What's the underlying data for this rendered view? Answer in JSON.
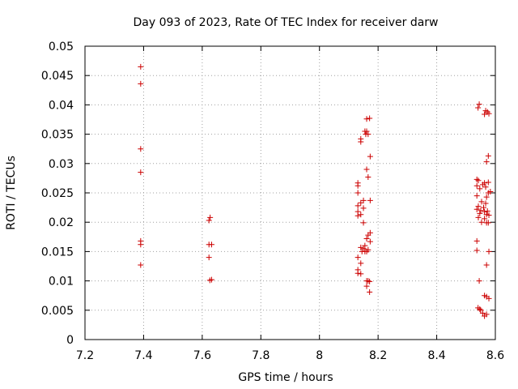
{
  "chart_data": {
    "type": "scatter",
    "title": "Day 093 of 2023, Rate Of TEC Index for receiver darw",
    "xlabel": "GPS time / hours",
    "ylabel": "ROTI / TECUs",
    "xlim": [
      7.2,
      8.6
    ],
    "ylim": [
      0,
      0.05
    ],
    "grid": true,
    "marker": "plus",
    "color": "#cc0000",
    "xticks": [
      7.2,
      7.4,
      7.6,
      7.8,
      8.0,
      8.2,
      8.4,
      8.6
    ],
    "xtick_labels": [
      "7.2",
      "7.4",
      "7.6",
      "7.8",
      "8",
      "8.2",
      "8.4",
      "8.6"
    ],
    "yticks": [
      0,
      0.005,
      0.01,
      0.015,
      0.02,
      0.025,
      0.03,
      0.035,
      0.04,
      0.045,
      0.05
    ],
    "ytick_labels": [
      "0",
      "0.005",
      "0.01",
      "0.015",
      "0.02",
      "0.025",
      "0.03",
      "0.035",
      "0.04",
      "0.045",
      "0.05"
    ],
    "points": [
      {
        "x": 7.39,
        "y": 0.0465
      },
      {
        "x": 7.39,
        "y": 0.0436
      },
      {
        "x": 7.39,
        "y": 0.0325
      },
      {
        "x": 7.39,
        "y": 0.0285
      },
      {
        "x": 7.39,
        "y": 0.0168
      },
      {
        "x": 7.39,
        "y": 0.0162
      },
      {
        "x": 7.39,
        "y": 0.0127
      },
      {
        "x": 7.627,
        "y": 0.0208
      },
      {
        "x": 7.623,
        "y": 0.0203
      },
      {
        "x": 7.623,
        "y": 0.0162
      },
      {
        "x": 7.632,
        "y": 0.0162
      },
      {
        "x": 7.623,
        "y": 0.014
      },
      {
        "x": 7.626,
        "y": 0.0101
      },
      {
        "x": 7.632,
        "y": 0.0102
      },
      {
        "x": 8.161,
        "y": 0.0376
      },
      {
        "x": 8.171,
        "y": 0.0377
      },
      {
        "x": 8.155,
        "y": 0.0355
      },
      {
        "x": 8.161,
        "y": 0.0355
      },
      {
        "x": 8.158,
        "y": 0.035
      },
      {
        "x": 8.166,
        "y": 0.035
      },
      {
        "x": 8.141,
        "y": 0.0342
      },
      {
        "x": 8.141,
        "y": 0.0337
      },
      {
        "x": 8.173,
        "y": 0.0312
      },
      {
        "x": 8.161,
        "y": 0.029
      },
      {
        "x": 8.166,
        "y": 0.0277
      },
      {
        "x": 8.131,
        "y": 0.0267
      },
      {
        "x": 8.131,
        "y": 0.0262
      },
      {
        "x": 8.131,
        "y": 0.025
      },
      {
        "x": 8.15,
        "y": 0.0237
      },
      {
        "x": 8.173,
        "y": 0.0237
      },
      {
        "x": 8.141,
        "y": 0.0233
      },
      {
        "x": 8.131,
        "y": 0.0228
      },
      {
        "x": 8.15,
        "y": 0.0224
      },
      {
        "x": 8.131,
        "y": 0.0218
      },
      {
        "x": 8.141,
        "y": 0.0213
      },
      {
        "x": 8.131,
        "y": 0.0211
      },
      {
        "x": 8.15,
        "y": 0.0199
      },
      {
        "x": 8.173,
        "y": 0.0182
      },
      {
        "x": 8.166,
        "y": 0.0178
      },
      {
        "x": 8.161,
        "y": 0.0172
      },
      {
        "x": 8.173,
        "y": 0.0167
      },
      {
        "x": 8.155,
        "y": 0.016
      },
      {
        "x": 8.141,
        "y": 0.0157
      },
      {
        "x": 8.15,
        "y": 0.0155
      },
      {
        "x": 8.166,
        "y": 0.0153
      },
      {
        "x": 8.145,
        "y": 0.015
      },
      {
        "x": 8.155,
        "y": 0.015
      },
      {
        "x": 8.161,
        "y": 0.015
      },
      {
        "x": 8.131,
        "y": 0.014
      },
      {
        "x": 8.141,
        "y": 0.013
      },
      {
        "x": 8.131,
        "y": 0.0119
      },
      {
        "x": 8.131,
        "y": 0.0113
      },
      {
        "x": 8.141,
        "y": 0.0112
      },
      {
        "x": 8.161,
        "y": 0.01
      },
      {
        "x": 8.166,
        "y": 0.01
      },
      {
        "x": 8.171,
        "y": 0.0099
      },
      {
        "x": 8.161,
        "y": 0.0091
      },
      {
        "x": 8.171,
        "y": 0.0081
      },
      {
        "x": 8.545,
        "y": 0.0401
      },
      {
        "x": 8.541,
        "y": 0.0395
      },
      {
        "x": 8.567,
        "y": 0.039
      },
      {
        "x": 8.573,
        "y": 0.0388
      },
      {
        "x": 8.563,
        "y": 0.0384
      },
      {
        "x": 8.578,
        "y": 0.0385
      },
      {
        "x": 8.576,
        "y": 0.0313
      },
      {
        "x": 8.57,
        "y": 0.0303
      },
      {
        "x": 8.537,
        "y": 0.0273
      },
      {
        "x": 8.542,
        "y": 0.0271
      },
      {
        "x": 8.563,
        "y": 0.0267
      },
      {
        "x": 8.576,
        "y": 0.0268
      },
      {
        "x": 8.557,
        "y": 0.0264
      },
      {
        "x": 8.537,
        "y": 0.0262
      },
      {
        "x": 8.567,
        "y": 0.026
      },
      {
        "x": 8.547,
        "y": 0.0257
      },
      {
        "x": 8.576,
        "y": 0.025
      },
      {
        "x": 8.583,
        "y": 0.0252
      },
      {
        "x": 8.537,
        "y": 0.0245
      },
      {
        "x": 8.57,
        "y": 0.0243
      },
      {
        "x": 8.553,
        "y": 0.0235
      },
      {
        "x": 8.567,
        "y": 0.0232
      },
      {
        "x": 8.542,
        "y": 0.0227
      },
      {
        "x": 8.56,
        "y": 0.0225
      },
      {
        "x": 8.537,
        "y": 0.0222
      },
      {
        "x": 8.55,
        "y": 0.022
      },
      {
        "x": 8.563,
        "y": 0.0218
      },
      {
        "x": 8.573,
        "y": 0.0219
      },
      {
        "x": 8.547,
        "y": 0.0215
      },
      {
        "x": 8.57,
        "y": 0.0213
      },
      {
        "x": 8.578,
        "y": 0.0212
      },
      {
        "x": 8.542,
        "y": 0.0208
      },
      {
        "x": 8.563,
        "y": 0.0206
      },
      {
        "x": 8.553,
        "y": 0.02
      },
      {
        "x": 8.57,
        "y": 0.0199
      },
      {
        "x": 8.576,
        "y": 0.0199
      },
      {
        "x": 8.537,
        "y": 0.0168
      },
      {
        "x": 8.537,
        "y": 0.0152
      },
      {
        "x": 8.578,
        "y": 0.015
      },
      {
        "x": 8.57,
        "y": 0.0127
      },
      {
        "x": 8.545,
        "y": 0.01
      },
      {
        "x": 8.563,
        "y": 0.0075
      },
      {
        "x": 8.57,
        "y": 0.0073
      },
      {
        "x": 8.578,
        "y": 0.007
      },
      {
        "x": 8.541,
        "y": 0.0054
      },
      {
        "x": 8.547,
        "y": 0.0052
      },
      {
        "x": 8.55,
        "y": 0.005
      },
      {
        "x": 8.557,
        "y": 0.0045
      },
      {
        "x": 8.563,
        "y": 0.004
      },
      {
        "x": 8.57,
        "y": 0.0043
      }
    ]
  }
}
